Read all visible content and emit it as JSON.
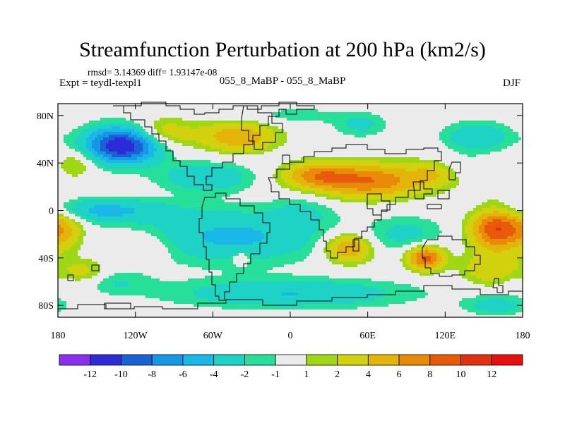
{
  "chart_data": {
    "type": "heatmap",
    "title": "Streamfunction Perturbation at 200 hPa (km2/s)",
    "stats_text": "rmsd= 3.14369 diff= 1.93147e-08",
    "experiment_text": "Expt = teydl-texpl1",
    "runs_text": "055_8_MaBP - 055_8_MaBP",
    "season": "DJF",
    "x_ticks": [
      {
        "lon": -180,
        "label": "180"
      },
      {
        "lon": -120,
        "label": "120W"
      },
      {
        "lon": -60,
        "label": "60W"
      },
      {
        "lon": 0,
        "label": "0"
      },
      {
        "lon": 60,
        "label": "60E"
      },
      {
        "lon": 120,
        "label": "120E"
      },
      {
        "lon": 180,
        "label": "180"
      }
    ],
    "y_ticks": [
      {
        "lat": 80,
        "label": "80N"
      },
      {
        "lat": 40,
        "label": "40N"
      },
      {
        "lat": 0,
        "label": "0"
      },
      {
        "lat": -40,
        "label": "40S"
      },
      {
        "lat": -80,
        "label": "80S"
      }
    ],
    "xlim": [
      -180,
      180
    ],
    "ylim": [
      -90,
      90
    ],
    "levels": [
      "-12",
      "-10",
      "-8",
      "-6",
      "-4",
      "-2",
      "-1",
      "1",
      "2",
      "4",
      "6",
      "8",
      "10",
      "12"
    ],
    "bin_colors": [
      "#8c2ef0",
      "#2d2bd8",
      "#1862d6",
      "#1597e6",
      "#1ab8e8",
      "#1ed3c6",
      "#26e09a",
      "#ebebeb",
      "#9ed815",
      "#d2d10e",
      "#e5b40b",
      "#e98a09",
      "#e8590a",
      "#e0300d",
      "#e8100e"
    ],
    "blobs": [
      {
        "lon": -130,
        "lat": 55,
        "amp": -12.5,
        "slon": 28,
        "slat": 15
      },
      {
        "lon": -148,
        "lat": 0,
        "amp": -4.5,
        "slon": 55,
        "slat": 10
      },
      {
        "lon": -65,
        "lat": 28,
        "amp": -4.0,
        "slon": 35,
        "slat": 12
      },
      {
        "lon": 5,
        "lat": 80,
        "amp": -1.5,
        "slon": 40,
        "slat": 8
      },
      {
        "lon": 55,
        "lat": 72,
        "amp": -2.5,
        "slon": 20,
        "slat": 10
      },
      {
        "lon": 145,
        "lat": 62,
        "amp": -4.0,
        "slon": 25,
        "slat": 12
      },
      {
        "lon": 130,
        "lat": 35,
        "amp": -2.2,
        "slon": 20,
        "slat": 10
      },
      {
        "lon": -45,
        "lat": -22,
        "amp": -4.5,
        "slon": 70,
        "slat": 22
      },
      {
        "lon": 0,
        "lat": -70,
        "amp": -4.0,
        "slon": 90,
        "slat": 12
      },
      {
        "lon": 10,
        "lat": 0,
        "amp": -1.8,
        "slon": 25,
        "slat": 14
      },
      {
        "lon": 90,
        "lat": -20,
        "amp": -2.5,
        "slon": 30,
        "slat": 15
      },
      {
        "lon": -150,
        "lat": -60,
        "amp": -3.0,
        "slon": 35,
        "slat": 10
      },
      {
        "lon": 160,
        "lat": -80,
        "amp": -3.0,
        "slon": 25,
        "slat": 8
      },
      {
        "lon": -100,
        "lat": 65,
        "amp": 4.0,
        "slon": 25,
        "slat": 12
      },
      {
        "lon": -40,
        "lat": 62,
        "amp": 6.0,
        "slon": 28,
        "slat": 12
      },
      {
        "lon": 60,
        "lat": 25,
        "amp": 8.0,
        "slon": 45,
        "slat": 14
      },
      {
        "lon": 20,
        "lat": 30,
        "amp": 5.0,
        "slon": 25,
        "slat": 10
      },
      {
        "lon": 115,
        "lat": 32,
        "amp": 3.5,
        "slon": 20,
        "slat": 10
      },
      {
        "lon": 160,
        "lat": -15,
        "amp": 10.0,
        "slon": 20,
        "slat": 18
      },
      {
        "lon": -175,
        "lat": -15,
        "amp": 4.0,
        "slon": 15,
        "slat": 18
      },
      {
        "lon": -160,
        "lat": -55,
        "amp": 4.0,
        "slon": 20,
        "slat": 12
      },
      {
        "lon": 45,
        "lat": -32,
        "amp": 6.5,
        "slon": 18,
        "slat": 12
      },
      {
        "lon": 105,
        "lat": -40,
        "amp": 9.0,
        "slon": 14,
        "slat": 10
      },
      {
        "lon": 155,
        "lat": -50,
        "amp": 3.5,
        "slon": 22,
        "slat": 14
      },
      {
        "lon": -38,
        "lat": -40,
        "amp": 3.0,
        "slon": 6,
        "slat": 5
      },
      {
        "lon": -115,
        "lat": -30,
        "amp": 2.2,
        "slon": 25,
        "slat": 12
      },
      {
        "lon": -165,
        "lat": 40,
        "amp": 2.5,
        "slon": 15,
        "slat": 12
      }
    ]
  }
}
